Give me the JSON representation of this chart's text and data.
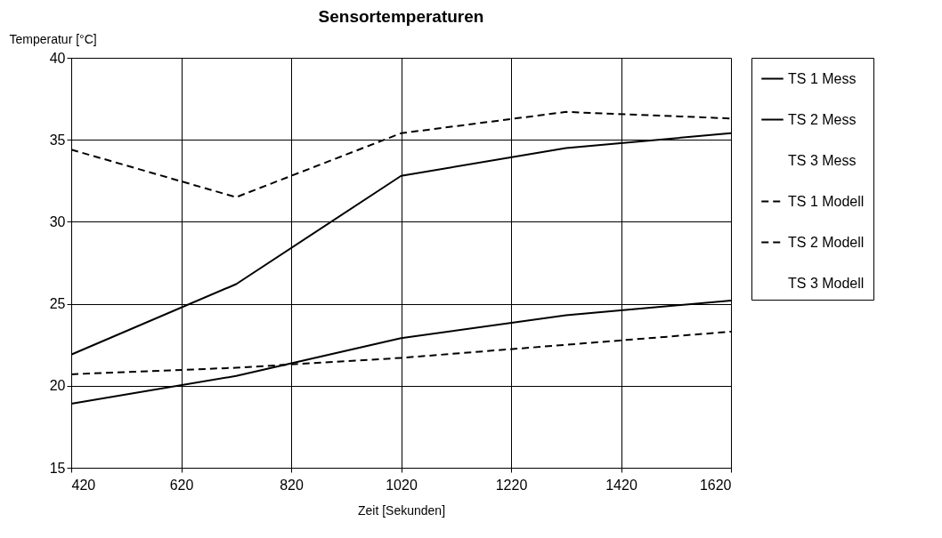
{
  "chart_data": {
    "type": "line",
    "title": "Sensortemperaturen",
    "xlabel": "Zeit [Sekunden]",
    "ylabel": "Temperatur [°C]",
    "x": [
      420,
      720,
      1020,
      1320,
      1620
    ],
    "series": [
      {
        "name": "TS 1 Mess",
        "color": "#000000",
        "line_style": "solid",
        "values": [
          18.9,
          20.6,
          22.9,
          24.3,
          25.2
        ]
      },
      {
        "name": "TS 2 Mess",
        "color": "#000000",
        "line_style": "solid",
        "values": [
          21.9,
          26.2,
          32.8,
          34.5,
          35.4
        ]
      },
      {
        "name": "TS 3 Mess",
        "line_style": "solid",
        "values": [
          null,
          null,
          null,
          null,
          null
        ]
      },
      {
        "name": "TS 1 Modell",
        "color": "#000000",
        "line_style": "dashed",
        "values": [
          20.7,
          21.1,
          21.7,
          22.5,
          23.3
        ]
      },
      {
        "name": "TS 2 Modell",
        "color": "#000000",
        "line_style": "dashed",
        "values": [
          34.4,
          31.5,
          35.4,
          36.7,
          36.3
        ]
      },
      {
        "name": "TS 3 Modell",
        "line_style": "dashed",
        "values": [
          null,
          null,
          null,
          null,
          null
        ]
      }
    ],
    "xlim": [
      420,
      1620
    ],
    "xticks": [
      420,
      620,
      820,
      1020,
      1220,
      1420,
      1620
    ],
    "ylim": [
      15,
      40
    ],
    "yticks": [
      15,
      20,
      25,
      30,
      35,
      40
    ],
    "grid": true,
    "legend": "right",
    "marker": "none"
  }
}
